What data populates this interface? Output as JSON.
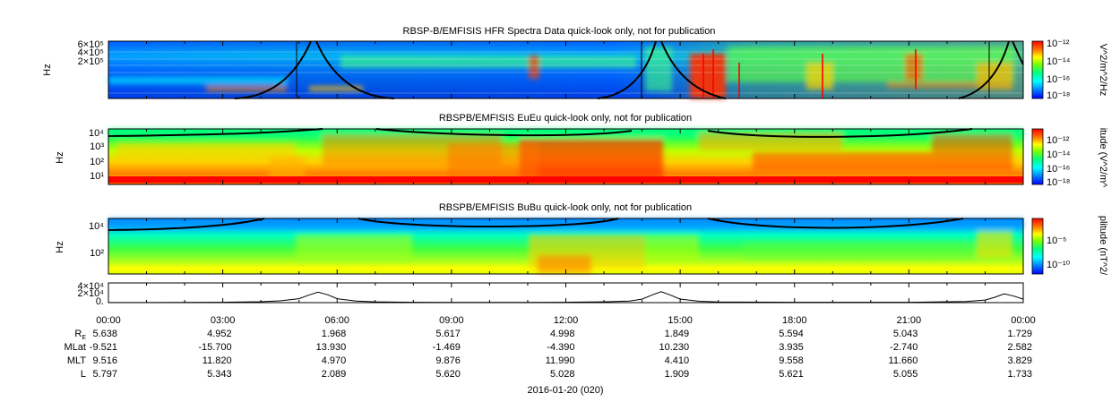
{
  "chart_data": [
    {
      "type": "heatmap",
      "title": "RBSP-B/EMFISIS  HFR Spectra Data quick-look only, not for publication",
      "ylabel": "Hz",
      "yticks": [
        "6×10⁵",
        "4×10⁵",
        "2×10⁵"
      ],
      "colorbar_label": "V^2/m^2/Hz",
      "colorbar_ticks": [
        "10⁻¹²",
        "10⁻¹⁴",
        "10⁻¹⁶",
        "10⁻¹⁸"
      ],
      "scale": "log"
    },
    {
      "type": "heatmap",
      "title": "RBSPB/EMFISIS  EuEu quick-look only, not for publication",
      "ylabel": "Hz",
      "yticks": [
        "10⁴",
        "10³",
        "10²",
        "10¹"
      ],
      "colorbar_label": "itude (V^2/m^",
      "colorbar_ticks": [
        "10⁻¹²",
        "10⁻¹⁴",
        "10⁻¹⁶",
        "10⁻¹⁸"
      ],
      "scale": "log"
    },
    {
      "type": "heatmap",
      "title": "RBSPB/EMFISIS  BuBu quick-look only, not for publication",
      "ylabel": "Hz",
      "yticks": [
        "10⁴",
        "10²"
      ],
      "colorbar_label": "plitude (nT^2/",
      "colorbar_ticks": [
        "10⁻⁵",
        "10⁻¹⁰"
      ],
      "scale": "log"
    },
    {
      "type": "line",
      "yticks": [
        "4×10⁴",
        "2×10⁴",
        "0."
      ],
      "x": [
        "00:00",
        "01:00",
        "02:00",
        "03:00",
        "04:00",
        "04:30",
        "05:00",
        "05:15",
        "05:30",
        "05:45",
        "06:00",
        "06:30",
        "07:00",
        "08:00",
        "09:00",
        "10:00",
        "11:00",
        "12:00",
        "13:00",
        "13:40",
        "14:00",
        "14:15",
        "14:30",
        "14:45",
        "15:00",
        "15:30",
        "16:00",
        "18:00",
        "21:00",
        "22:30",
        "23:00",
        "23:15",
        "23:30",
        "23:45",
        "24:00"
      ],
      "y": [
        200,
        300,
        500,
        900,
        2000,
        4000,
        9000,
        17000,
        24000,
        18000,
        9000,
        3500,
        1800,
        900,
        700,
        600,
        700,
        900,
        1800,
        3500,
        8000,
        17000,
        25000,
        17000,
        8000,
        3000,
        1500,
        800,
        900,
        2500,
        6000,
        12000,
        20000,
        15000,
        8000
      ]
    }
  ],
  "x_axis": {
    "ticks": [
      "00:00",
      "03:00",
      "06:00",
      "09:00",
      "12:00",
      "15:00",
      "18:00",
      "21:00",
      "00:00"
    ]
  },
  "ephemeris": {
    "rows": [
      {
        "label": "R",
        "sub": "E",
        "values": [
          "5.638",
          "4.952",
          "1.968",
          "5.617",
          "4.998",
          "1.849",
          "5.594",
          "5.043",
          "1.729"
        ]
      },
      {
        "label": "MLat",
        "values": [
          "-9.521",
          "-15.700",
          "13.930",
          "-1.469",
          "-4.390",
          "10.230",
          "3.935",
          "-2.740",
          "2.582"
        ]
      },
      {
        "label": "MLT",
        "values": [
          "9.516",
          "11.820",
          "4.970",
          "9.876",
          "11.990",
          "4.410",
          "9.558",
          "11.660",
          "3.829"
        ]
      },
      {
        "label": "L",
        "values": [
          "5.797",
          "5.343",
          "2.089",
          "5.620",
          "5.028",
          "1.909",
          "5.621",
          "5.055",
          "1.733"
        ]
      }
    ]
  },
  "date_label": "2016-01-20 (020)",
  "colors": {
    "palette": [
      "#0000ff",
      "#0080ff",
      "#00ffff",
      "#00ff80",
      "#80ff00",
      "#ffff00",
      "#ffc000",
      "#ff8000",
      "#ff0000"
    ],
    "line": "#000000"
  }
}
